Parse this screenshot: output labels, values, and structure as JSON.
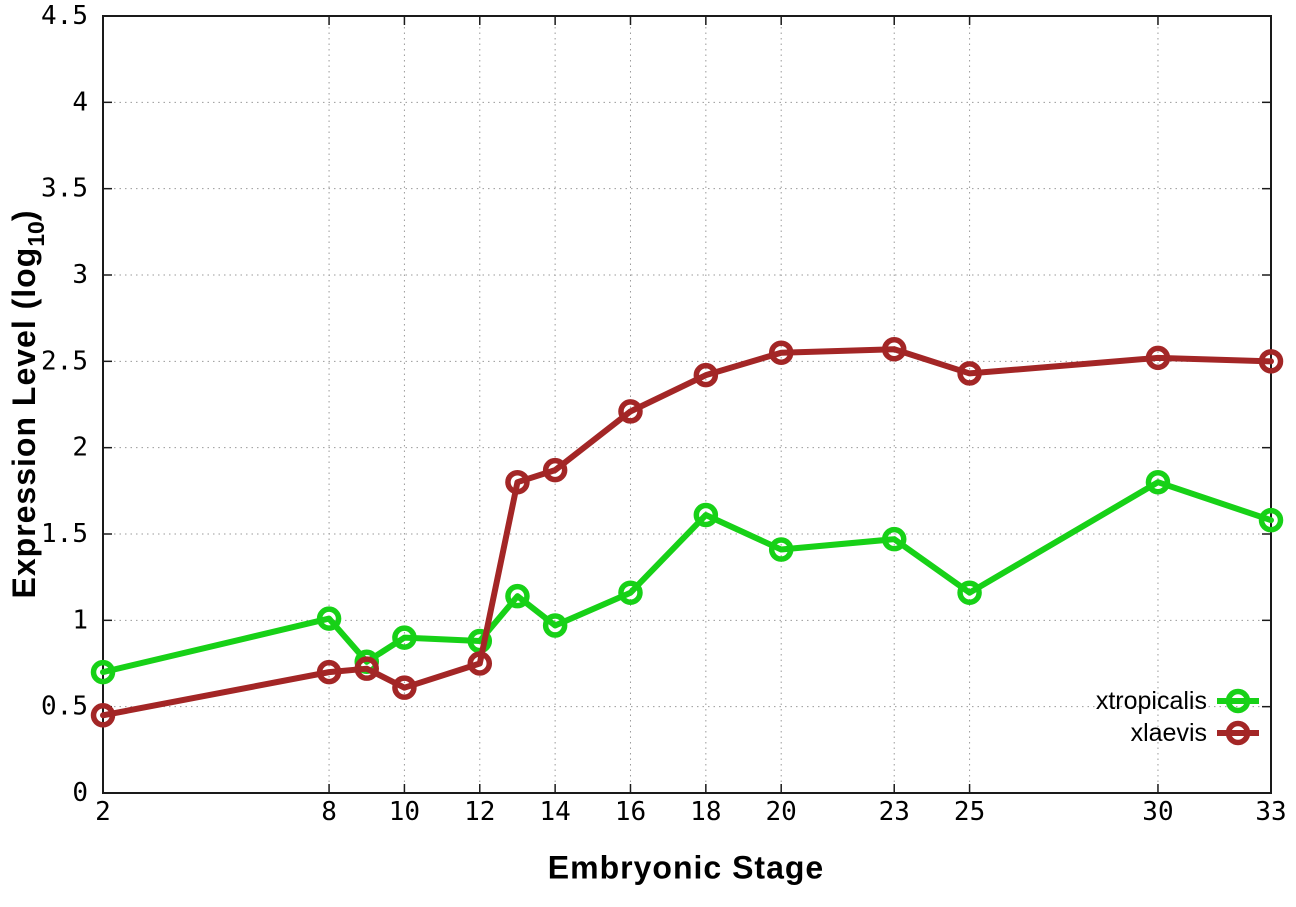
{
  "axes": {
    "xlabel": "Embryonic Stage",
    "ylabel_pre": "Expression Level (log",
    "ylabel_sub": "10",
    "ylabel_post": ")"
  },
  "colors": {
    "xtropicalis": "#17d117",
    "xlaevis": "#a32626",
    "grid": "#9a9a9a",
    "border": "#1a1a1a",
    "text": "#000000"
  },
  "chart_data": {
    "type": "line",
    "title": "",
    "xlabel": "Embryonic Stage",
    "ylabel": "Expression Level (log10)",
    "xlim": [
      2,
      33
    ],
    "ylim": [
      0,
      4.5
    ],
    "x_ticks": [
      2,
      8,
      10,
      12,
      14,
      16,
      18,
      20,
      23,
      25,
      30,
      33
    ],
    "y_ticks": [
      0,
      0.5,
      1,
      1.5,
      2,
      2.5,
      3,
      3.5,
      4,
      4.5
    ],
    "grid": true,
    "legend_position": "bottom-right",
    "marker": "open-circle",
    "series": [
      {
        "name": "xtropicalis",
        "color": "#17d117",
        "x": [
          2,
          8,
          9,
          10,
          12,
          13,
          14,
          16,
          18,
          20,
          23,
          25,
          30,
          33
        ],
        "y": [
          0.7,
          1.01,
          0.76,
          0.9,
          0.88,
          1.14,
          0.97,
          1.16,
          1.61,
          1.41,
          1.47,
          1.16,
          1.8,
          1.58
        ]
      },
      {
        "name": "xlaevis",
        "color": "#a32626",
        "x": [
          2,
          8,
          9,
          10,
          12,
          13,
          14,
          16,
          18,
          20,
          23,
          25,
          30,
          33
        ],
        "y": [
          0.45,
          0.7,
          0.72,
          0.61,
          0.75,
          1.8,
          1.87,
          2.21,
          2.42,
          2.55,
          2.57,
          2.43,
          2.52,
          2.5
        ]
      }
    ]
  }
}
